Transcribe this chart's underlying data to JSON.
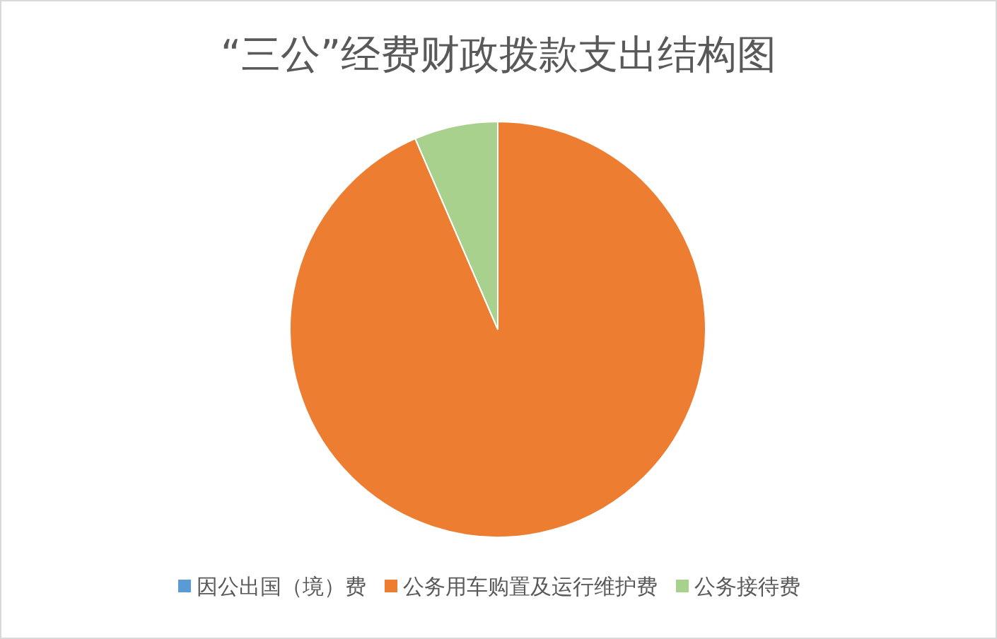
{
  "chart_data": {
    "type": "pie",
    "title": "“三公”经费财政拨款支出结构图",
    "categories": [
      "因公出国（境）费",
      "公务用车购置及运行维护费",
      "公务接待费"
    ],
    "values": [
      0,
      93.5,
      6.5
    ],
    "colors": [
      "#5b9bd5",
      "#ed7d31",
      "#a9d18e"
    ],
    "legend": "bottom"
  }
}
